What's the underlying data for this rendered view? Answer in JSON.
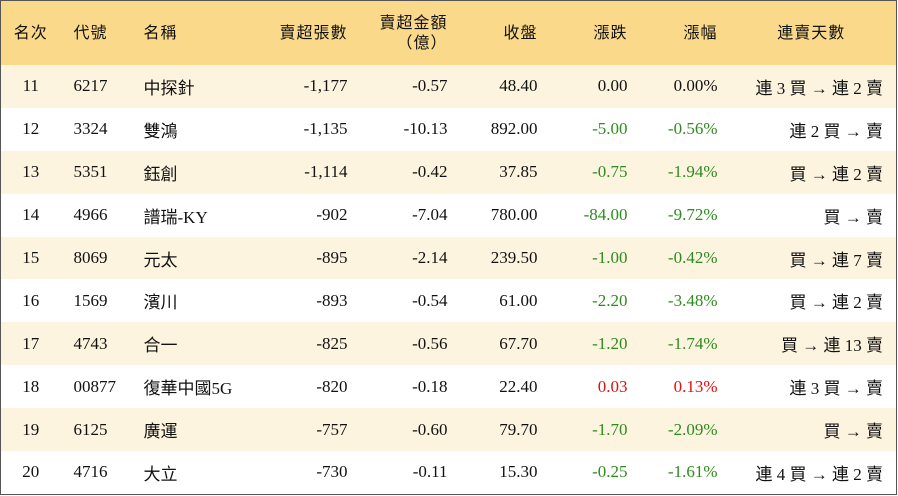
{
  "table": {
    "headers": [
      "名次",
      "代號",
      "名稱",
      "賣超張數",
      "賣超金額\n（億）",
      "收盤",
      "漲跌",
      "漲幅",
      "連賣天數"
    ],
    "rows": [
      [
        "11",
        "6217",
        "中探針",
        "-1,177",
        "-0.57",
        "48.40",
        "0.00",
        "0.00%",
        "連 3 買 → 連 2 賣"
      ],
      [
        "12",
        "3324",
        "雙鴻",
        "-1,135",
        "-10.13",
        "892.00",
        "-5.00",
        "-0.56%",
        "連 2 買 → 賣"
      ],
      [
        "13",
        "5351",
        "鈺創",
        "-1,114",
        "-0.42",
        "37.85",
        "-0.75",
        "-1.94%",
        "買 → 連 2 賣"
      ],
      [
        "14",
        "4966",
        "譜瑞-KY",
        "-902",
        "-7.04",
        "780.00",
        "-84.00",
        "-9.72%",
        "買 → 賣"
      ],
      [
        "15",
        "8069",
        "元太",
        "-895",
        "-2.14",
        "239.50",
        "-1.00",
        "-0.42%",
        "買 → 連 7 賣"
      ],
      [
        "16",
        "1569",
        "濱川",
        "-893",
        "-0.54",
        "61.00",
        "-2.20",
        "-3.48%",
        "買 → 連 2 賣"
      ],
      [
        "17",
        "4743",
        "合一",
        "-825",
        "-0.56",
        "67.70",
        "-1.20",
        "-1.74%",
        "買 → 連 13 賣"
      ],
      [
        "18",
        "00877",
        "復華中國5G",
        "-820",
        "-0.18",
        "22.40",
        "0.03",
        "0.13%",
        "連 3 買 → 賣"
      ],
      [
        "19",
        "6125",
        "廣運",
        "-757",
        "-0.60",
        "79.70",
        "-1.70",
        "-2.09%",
        "買 → 賣"
      ],
      [
        "20",
        "4716",
        "大立",
        "-730",
        "-0.11",
        "15.30",
        "-0.25",
        "-1.61%",
        "連 4 買 → 連 2 賣"
      ]
    ]
  }
}
